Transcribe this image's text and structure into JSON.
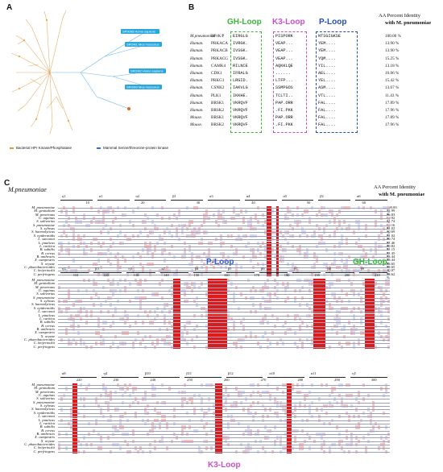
{
  "panelA": {
    "label": "A",
    "leaves": [
      {
        "text": "SP0095 Homo sapiens",
        "color": "#29a8dd"
      },
      {
        "text": "SRGN1 Mus musculus",
        "color": "#29a8dd"
      },
      {
        "text": "SRGN2 Homo sapiens",
        "color": "#29a8dd"
      },
      {
        "text": "SRGN3 Mus musculus",
        "color": "#29a8dd"
      }
    ],
    "legend": [
      {
        "text": "Bacterial HPr Kinase/Phosphatase",
        "color": "#d99a3e"
      },
      {
        "text": "Mammal Serine/threonine-protein kinase",
        "color": "#2d6fd6"
      }
    ]
  },
  "panelB": {
    "label": "B",
    "loops": [
      {
        "name": "GH-Loop",
        "color": "#3db53d"
      },
      {
        "name": "K3-Loop",
        "color": "#c84fc8"
      },
      {
        "name": "P-Loop",
        "color": "#1f4fb0"
      }
    ],
    "identity_header": [
      "AA Percent Identity",
      "with M. pneumoniae"
    ],
    "rows": [
      {
        "org": "M.pneumoniae",
        "gene": "HPrK/P",
        "gh": "EIRGLG",
        "k3": "PISPORK",
        "p": "NTSGIGKSE",
        "pct": "100.00 %"
      },
      {
        "org": "Human.",
        "gene": "PRKACA",
        "gh": "IVRGK.",
        "k3": "VEAP...",
        "p": "YEM....",
        "pct": "13.90 %"
      },
      {
        "org": "Human.",
        "gene": "PRKACB",
        "gh": "IVSGK.",
        "k3": "VEAP...",
        "p": "YEM....",
        "pct": "13.90 %"
      },
      {
        "org": "Human.",
        "gene": "PRKACG",
        "gh": "IVSGK.",
        "k3": "VEAP...",
        "p": "YQM....",
        "pct": "15.25 %"
      },
      {
        "org": "Human.",
        "gene": "CAMK4",
        "gh": "RILNCE",
        "k3": "AQKKLQE",
        "p": "YIL....",
        "pct": "13.18 %"
      },
      {
        "org": "Human.",
        "gene": "CDK1",
        "gh": "IFRALG",
        "k3": "......",
        "p": "AEL....",
        "pct": "16.06 %"
      },
      {
        "org": "Human.",
        "gene": "PRKG1",
        "gh": "LRGID.",
        "k3": "LTFP...",
        "p": "YEL....",
        "pct": "15.42 %"
      },
      {
        "org": "Human.",
        "gene": "CSNK2",
        "gh": "IAKVLG",
        "k3": "SSMPGOS",
        "p": "ASM....",
        "pct": "13.67 %"
      },
      {
        "org": "Human.",
        "gene": "PLK1",
        "gh": "IKKHE.",
        "k3": "TCLTI..",
        "p": "VTL....",
        "pct": "11.43 %"
      },
      {
        "org": "Human.",
        "gene": "BRSK1",
        "gh": "VKRQVF",
        "k3": "PAP.ORR",
        "p": "FAL....",
        "pct": "17.89 %"
      },
      {
        "org": "Human.",
        "gene": "BRSK2",
        "gh": "VKRQVF",
        "k3": ".FI.PKK",
        "p": "FAL....",
        "pct": "17.96 %"
      },
      {
        "org": "Mouse.",
        "gene": "BRSK1",
        "gh": "VKRQVF",
        "k3": "PAP.ORR",
        "p": "FAL....",
        "pct": "17.89 %"
      },
      {
        "org": "Mouse.",
        "gene": "BRSK2",
        "gh": "VKRQVF",
        "k3": ".FI.PKK",
        "p": "FAL....",
        "pct": "17.96 %"
      }
    ]
  },
  "panelC": {
    "label": "C",
    "title": "M.pneumoniae",
    "identity_header": [
      "AA Percent Identity",
      "with M. pneumoniae"
    ],
    "species": [
      "M. pneumoniae",
      "M. genitalium",
      "M. penetrans",
      "U. aquinus",
      "S. salivarius",
      "S. pneumoniae",
      "S. xylosus",
      "S. haemolyticus",
      "S. epidermidis",
      "L. sarconai",
      "L. pauticus",
      "L. ruritica",
      "B. subtilis",
      "B. cereus",
      "B. anthracis",
      "X. campestris",
      "X. oryzae",
      "C. phaeobacteroides",
      "C. beijerinckii",
      "C. perfringens"
    ],
    "percents": [
      "100.00 %",
      "72.99 %",
      "36.83 %",
      "30.92 %",
      "31.74 %",
      "30.16 %",
      "31.02 %",
      "30.69 %",
      "31.02 %",
      "30.74 %",
      "31.46 %",
      "30.82 %",
      "31.15 %",
      "31.45 %",
      "33.44 %",
      "35.44 %",
      "35.65 %",
      "35.65 %",
      "30.07 %",
      "28.62 %"
    ],
    "ruler1": [
      "10",
      "20",
      "30",
      "40",
      "50",
      "60"
    ],
    "ruler2": [
      "110",
      "120",
      "130",
      "140",
      "150",
      "160",
      "170",
      "180",
      "190",
      "200",
      "210"
    ],
    "ruler3": [
      "220",
      "230",
      "240",
      "250",
      "260",
      "270",
      "280",
      "290",
      "300"
    ],
    "ss1": [
      "η1",
      "α1",
      "α2",
      "β1",
      "α3",
      "α4",
      "α5",
      "β2",
      "α6"
    ],
    "ss2": [
      "η2",
      "β3",
      "η3",
      "α7",
      "β4",
      "β5",
      "β6",
      "β7",
      "β8",
      "β9"
    ],
    "ss3": [
      "α8",
      "η4",
      "β10",
      "β11",
      "β12",
      "α10",
      "α11",
      "η5"
    ],
    "loops": [
      {
        "name": "P-Loop",
        "color": "#2d5fd0"
      },
      {
        "name": "GH-Loop",
        "color": "#2fbf3a"
      },
      {
        "name": "K3-Loop",
        "color": "#c84fc8"
      }
    ]
  }
}
